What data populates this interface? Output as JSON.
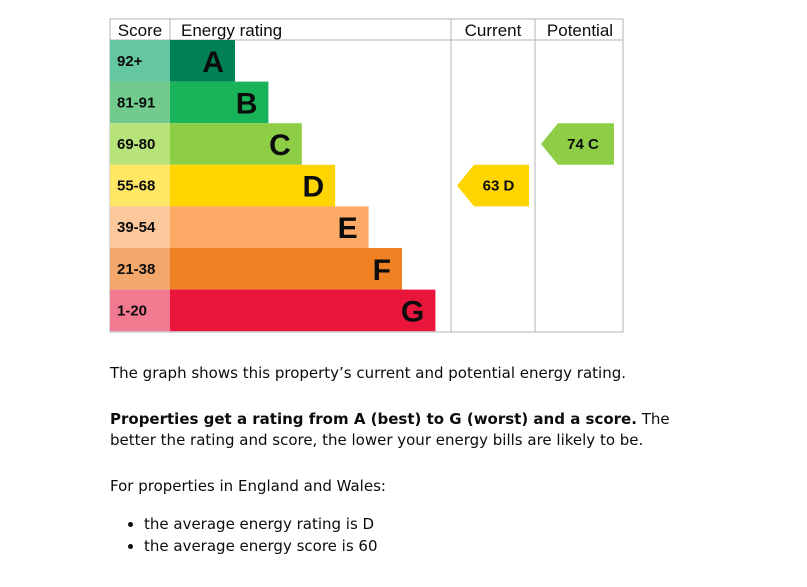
{
  "chart_data": {
    "type": "bar",
    "headers": {
      "score": "Score",
      "rating": "Energy rating",
      "current": "Current",
      "potential": "Potential"
    },
    "bands": [
      {
        "letter": "A",
        "range": "92+",
        "color": "#008054",
        "score_color": "#64c7a1"
      },
      {
        "letter": "B",
        "range": "81-91",
        "color": "#19b459",
        "score_color": "#72cb8d"
      },
      {
        "letter": "C",
        "range": "69-80",
        "color": "#8dce46",
        "score_color": "#b8e27a"
      },
      {
        "letter": "D",
        "range": "55-68",
        "color": "#ffd500",
        "score_color": "#ffe766"
      },
      {
        "letter": "E",
        "range": "39-54",
        "color": "#fcaa65",
        "score_color": "#fdc99c"
      },
      {
        "letter": "F",
        "range": "21-38",
        "color": "#ef8023",
        "score_color": "#f4a76a"
      },
      {
        "letter": "G",
        "range": "1-20",
        "color": "#e9153b",
        "score_color": "#f27a90"
      }
    ],
    "current": {
      "score": 63,
      "band": "D",
      "label": "63  D",
      "color": "#ffd500"
    },
    "potential": {
      "score": 74,
      "band": "C",
      "label": "74  C",
      "color": "#8dce46"
    }
  },
  "text": {
    "p1": "The graph shows this property’s current and potential energy rating.",
    "p2_bold": "Properties get a rating from A (best) to G (worst) and a score.",
    "p2_rest": " The better the rating and score, the lower your energy bills are likely to be.",
    "p3": "For properties in England and Wales:",
    "bullets": [
      "the average energy rating is D",
      "the average energy score is 60"
    ]
  }
}
